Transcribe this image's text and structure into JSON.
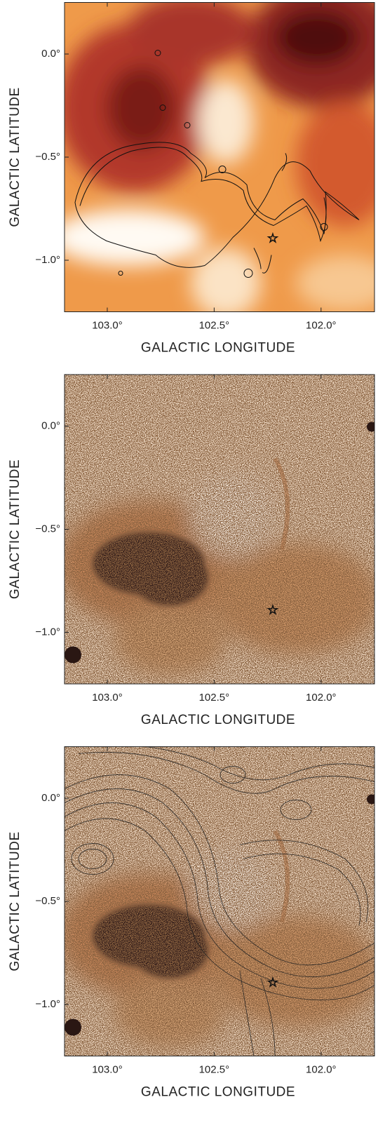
{
  "chart_data": [
    {
      "type": "image",
      "xlabel": "GALACTIC LONGITUDE",
      "ylabel": "GALACTIC LATITUDE",
      "xlim": [
        103.2,
        101.75
      ],
      "ylim": [
        -1.25,
        0.25
      ],
      "xticks": [
        {
          "value": 103.0,
          "label": "103.0°"
        },
        {
          "value": 102.5,
          "label": "102.5°"
        },
        {
          "value": 102.0,
          "label": "102.0°"
        }
      ],
      "yticks": [
        {
          "value": 0,
          "label": "0.0°"
        },
        {
          "value": -0.5,
          "label": "−0.5°"
        },
        {
          "value": -1.0,
          "label": "−1.0°"
        }
      ]
    },
    {
      "type": "image",
      "xlabel": "GALACTIC LONGITUDE",
      "ylabel": "GALACTIC LATITUDE",
      "xlim": [
        103.2,
        101.75
      ],
      "ylim": [
        -1.25,
        0.25
      ],
      "xticks": [
        {
          "value": 103.0,
          "label": "103.0°"
        },
        {
          "value": 102.5,
          "label": "102.5°"
        },
        {
          "value": 102.0,
          "label": "102.0°"
        }
      ],
      "yticks": [
        {
          "value": 0,
          "label": "0.0°"
        },
        {
          "value": -0.5,
          "label": "−0.5°"
        },
        {
          "value": -1.0,
          "label": "−1.0°"
        }
      ]
    },
    {
      "type": "image",
      "xlabel": "GALACTIC LONGITUDE",
      "ylabel": "GALACTIC LATITUDE",
      "xlim": [
        103.2,
        101.75
      ],
      "ylim": [
        -1.25,
        0.25
      ],
      "xticks": [
        {
          "value": 103.0,
          "label": "103.0°"
        },
        {
          "value": 102.5,
          "label": "102.5°"
        },
        {
          "value": 102.0,
          "label": "102.0°"
        }
      ],
      "yticks": [
        {
          "value": 0,
          "label": "0.0°"
        },
        {
          "value": -0.5,
          "label": "−0.5°"
        },
        {
          "value": -1.0,
          "label": "−1.0°"
        }
      ]
    }
  ]
}
